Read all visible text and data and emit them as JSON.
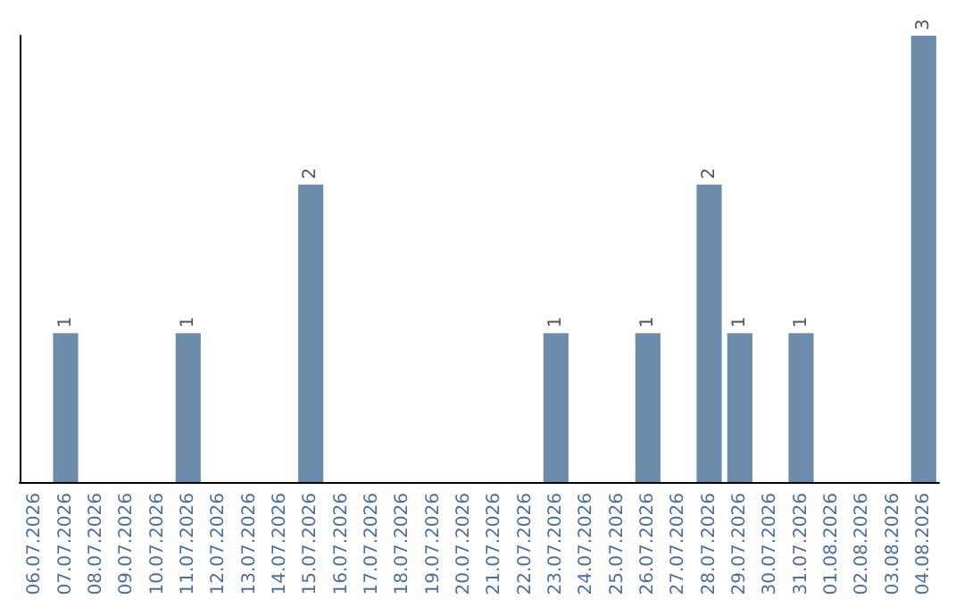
{
  "chart_data": {
    "type": "bar",
    "categories": [
      "06.07.2026",
      "07.07.2026",
      "08.07.2026",
      "09.07.2026",
      "10.07.2026",
      "11.07.2026",
      "12.07.2026",
      "13.07.2026",
      "14.07.2026",
      "15.07.2026",
      "16.07.2026",
      "17.07.2026",
      "18.07.2026",
      "19.07.2026",
      "20.07.2026",
      "21.07.2026",
      "22.07.2026",
      "23.07.2026",
      "24.07.2026",
      "25.07.2026",
      "26.07.2026",
      "27.07.2026",
      "28.07.2026",
      "29.07.2026",
      "30.07.2026",
      "31.07.2026",
      "01.08.2026",
      "02.08.2026",
      "03.08.2026",
      "04.08.2026"
    ],
    "values": [
      0,
      1,
      0,
      0,
      0,
      1,
      0,
      0,
      0,
      2,
      0,
      0,
      0,
      0,
      0,
      0,
      0,
      1,
      0,
      0,
      1,
      0,
      2,
      1,
      0,
      1,
      0,
      0,
      0,
      3
    ],
    "value_labels": [
      null,
      "1",
      null,
      null,
      null,
      "1",
      null,
      null,
      null,
      "2",
      null,
      null,
      null,
      null,
      null,
      null,
      null,
      "1",
      null,
      null,
      "1",
      null,
      "2",
      "1",
      null,
      "1",
      null,
      null,
      null,
      "3"
    ],
    "color": "#6d8cab"
  }
}
